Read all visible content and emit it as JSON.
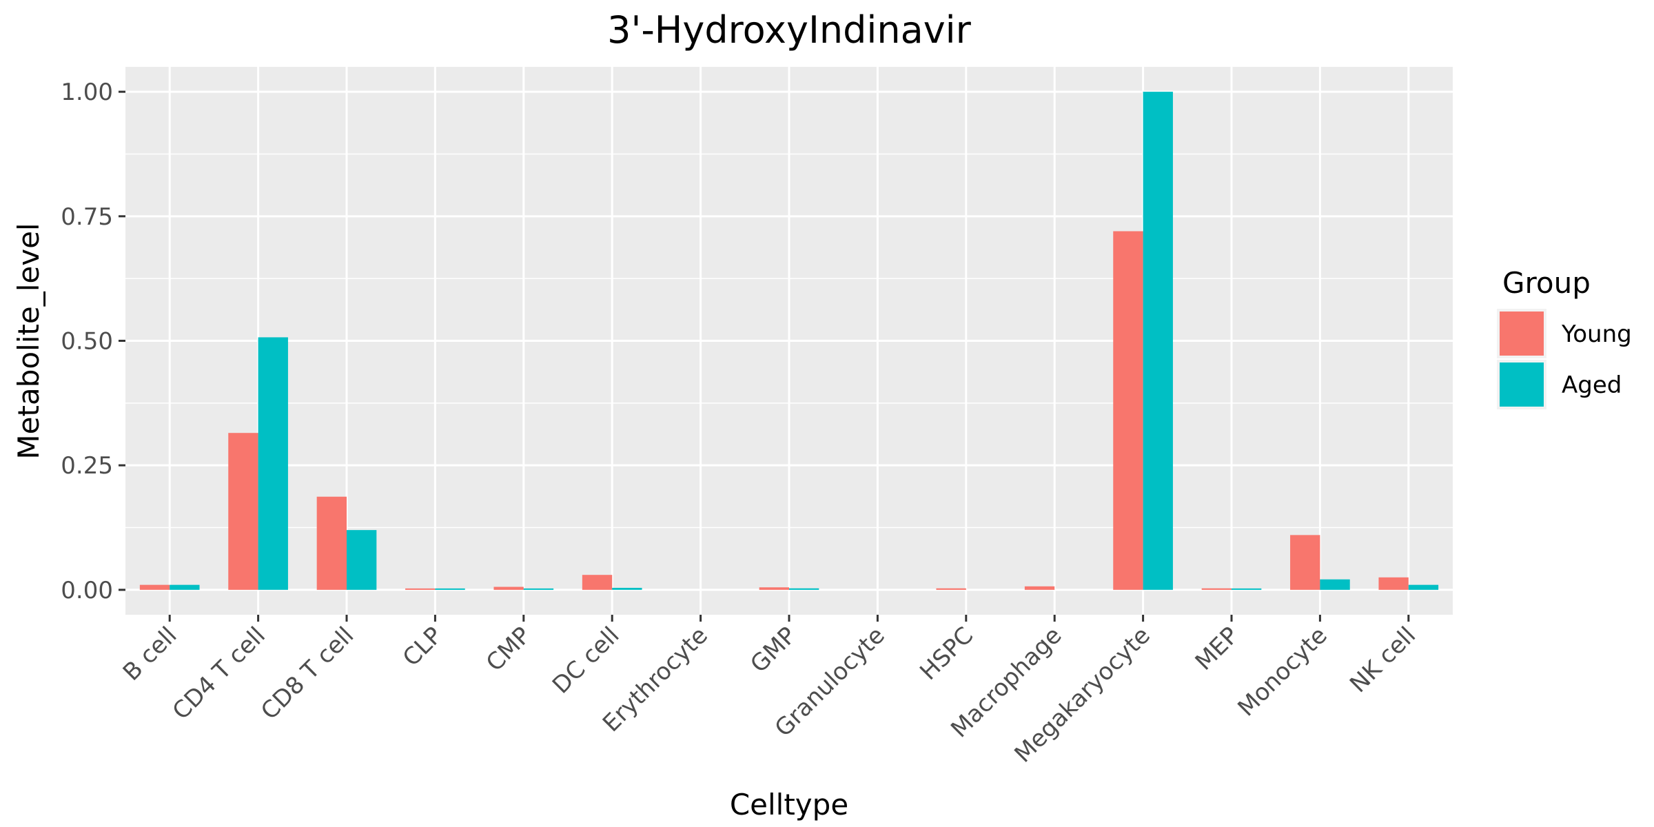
{
  "chart_data": {
    "type": "bar",
    "title": "3'-HydroxyIndinavir",
    "xlabel": "Celltype",
    "ylabel": "Metabolite_level",
    "categories": [
      "B cell",
      "CD4 T cell",
      "CD8 T cell",
      "CLP",
      "CMP",
      "DC cell",
      "Erythrocyte",
      "GMP",
      "Granulocyte",
      "HSPC",
      "Macrophage",
      "Megakaryocyte",
      "MEP",
      "Monocyte",
      "NK cell"
    ],
    "series": [
      {
        "name": "Young",
        "color": "#F8766D",
        "values": [
          0.01,
          0.315,
          0.187,
          0.002,
          0.006,
          0.03,
          0,
          0.005,
          0,
          0.003,
          0.007,
          0.72,
          0.003,
          0.11,
          0.025
        ]
      },
      {
        "name": "Aged",
        "color": "#00BFC4",
        "values": [
          0.01,
          0.507,
          0.12,
          0.002,
          0.002,
          0.004,
          0,
          0.003,
          0,
          0,
          0,
          1.0,
          0.002,
          0.021,
          0.01
        ]
      }
    ],
    "ylim": [
      -0.05,
      1.05
    ],
    "yticks": [
      0,
      0.25,
      0.5,
      0.75,
      1.0
    ],
    "ytick_labels": [
      "0.00",
      "0.25",
      "0.50",
      "0.75",
      "1.00"
    ],
    "grid": true,
    "panel_background": "#EBEBEB",
    "legend": {
      "title": "Group",
      "position": "right"
    }
  }
}
